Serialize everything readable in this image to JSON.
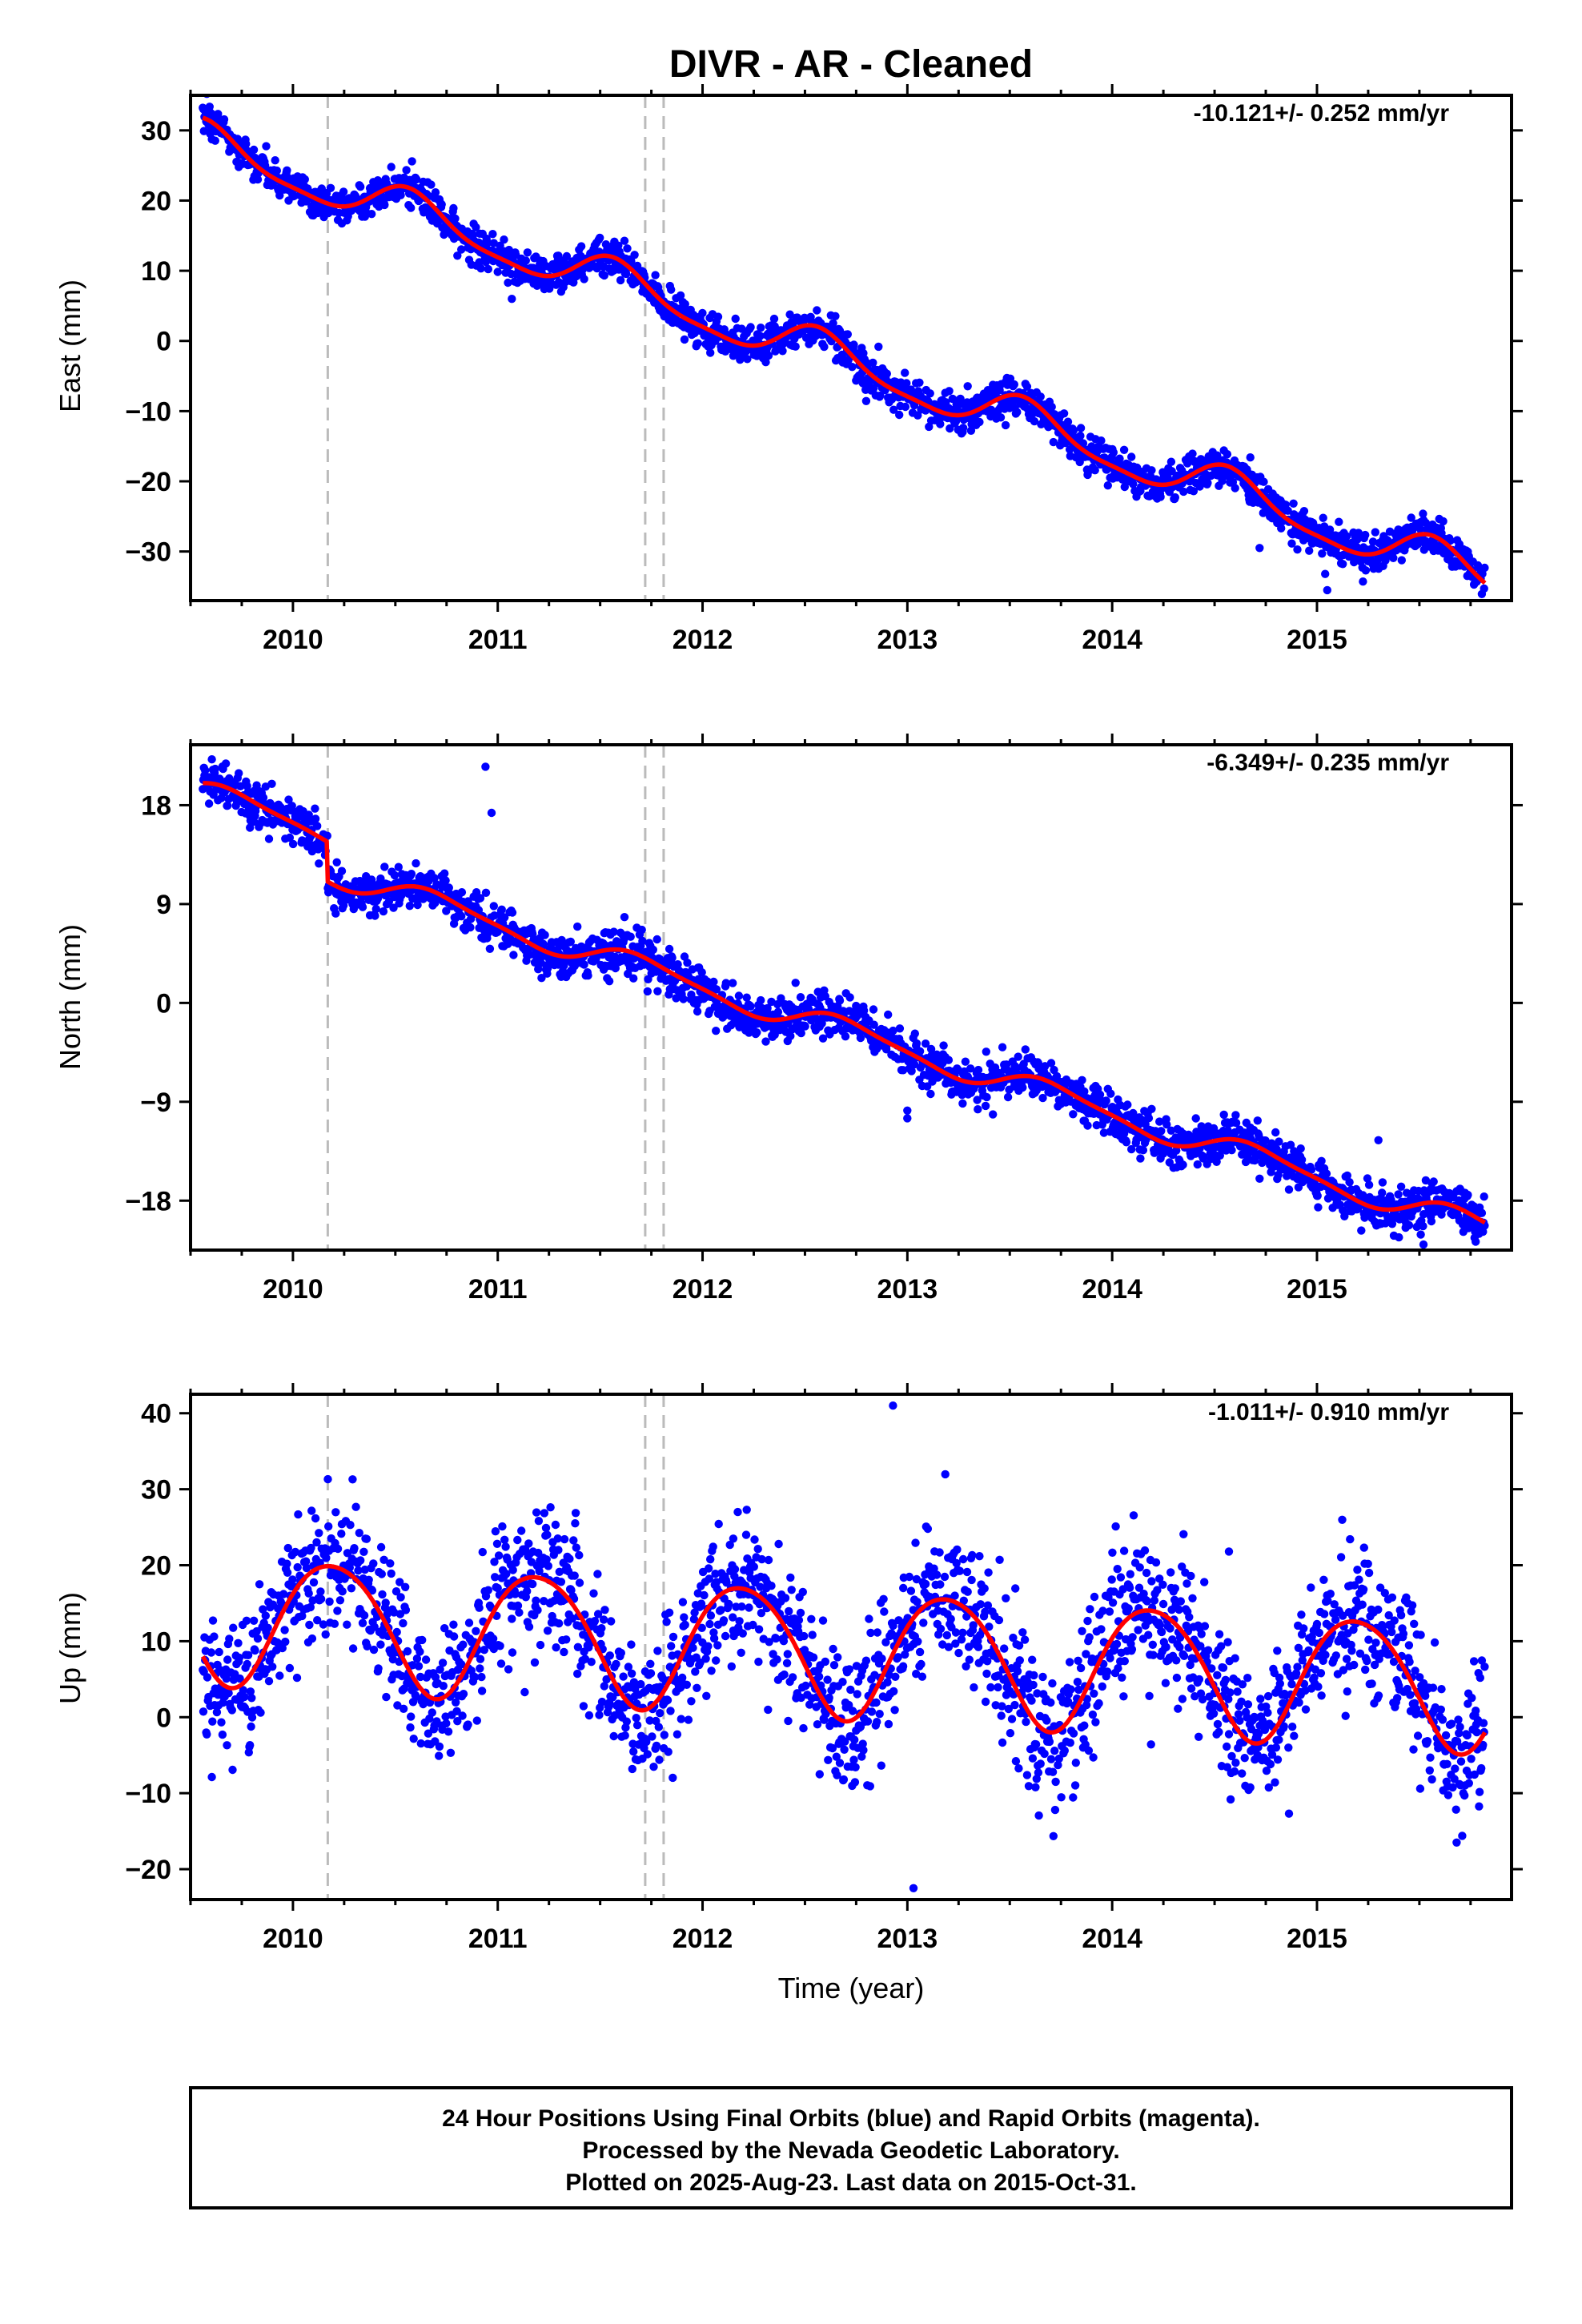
{
  "title": "DIVR  - AR - Cleaned",
  "xlabel": "Time (year)",
  "colors": {
    "points": "#0000ff",
    "model": "#ff0000",
    "events": "#bbbbbb",
    "frame": "#000000"
  },
  "footer": {
    "lines": [
      "24 Hour Positions Using Final Orbits (blue) and Rapid Orbits (magenta).",
      "Processed by the Nevada Geodetic Laboratory.",
      "Plotted on 2025-Aug-23. Last data on 2015-Oct-31."
    ]
  },
  "chart_data": [
    {
      "type": "scatter",
      "panel": "east",
      "ylabel": "East (mm)",
      "rate_label": "-10.121+/- 0.252 mm/yr",
      "xlim": [
        2009.5,
        2015.95
      ],
      "ylim": [
        -37,
        35
      ],
      "xticks": [
        2010,
        2011,
        2012,
        2013,
        2014,
        2015
      ],
      "yticks": [
        30,
        20,
        10,
        0,
        -10,
        -20,
        -30
      ],
      "ytick_labels": [
        "30",
        "20",
        "10",
        "0",
        "−10",
        "−20",
        "−30"
      ],
      "event_lines": [
        2010.17,
        2011.72,
        2011.81
      ],
      "model": {
        "start": [
          2009.56,
          31.8
        ],
        "end": [
          2015.82,
          -34.5
        ],
        "trend_mm_per_yr": -10.121,
        "annual_amp": 3.0,
        "annual_phase": 4.2,
        "semiannual_amp": 0.8,
        "semiannual_phase": 1.0
      },
      "scatter_noise_mm": 1.3,
      "outliers": [
        [
          2015.05,
          -35.5
        ],
        [
          2015.04,
          -33.2
        ],
        [
          2014.72,
          -29.5
        ],
        [
          2011.05,
          8.3
        ],
        [
          2013.48,
          -12.0
        ]
      ]
    },
    {
      "type": "scatter",
      "panel": "north",
      "ylabel": "North (mm)",
      "rate_label": "-6.349+/- 0.235 mm/yr",
      "xlim": [
        2009.5,
        2015.95
      ],
      "ylim": [
        -22.5,
        23.5
      ],
      "xticks": [
        2010,
        2011,
        2012,
        2013,
        2014,
        2015
      ],
      "yticks": [
        18,
        9,
        0,
        -9,
        -18
      ],
      "ytick_labels": [
        "18",
        "9",
        "0",
        "−9",
        "−18"
      ],
      "event_lines": [
        2010.17,
        2011.72,
        2011.81
      ],
      "model": {
        "start": [
          2009.56,
          20.0
        ],
        "end": [
          2015.82,
          -20.0
        ],
        "trend_mm_per_yr": -6.349,
        "annual_amp": 1.2,
        "annual_phase": 3.4,
        "semiannual_amp": 0.3,
        "semiannual_phase": 0.5
      },
      "offsets": [
        [
          2010.17,
          -4.0
        ]
      ],
      "scatter_noise_mm": 1.0,
      "outliers": [
        [
          2010.94,
          21.5
        ],
        [
          2010.97,
          17.3
        ],
        [
          2013.0,
          -10.5
        ],
        [
          2013.0,
          -9.8
        ],
        [
          2014.72,
          -16.0
        ],
        [
          2015.3,
          -12.5
        ],
        [
          2015.52,
          -22.0
        ]
      ]
    },
    {
      "type": "scatter",
      "panel": "up",
      "ylabel": "Up (mm)",
      "rate_label": "-1.011+/- 0.910 mm/yr",
      "xlim": [
        2009.5,
        2015.95
      ],
      "ylim": [
        -24,
        42.5
      ],
      "xticks": [
        2010,
        2011,
        2012,
        2013,
        2014,
        2015
      ],
      "yticks": [
        40,
        30,
        20,
        10,
        0,
        -10,
        -20
      ],
      "ytick_labels": [
        "40",
        "30",
        "20",
        "10",
        "0",
        "−10",
        "−20"
      ],
      "event_lines": [
        2010.17,
        2011.72,
        2011.81
      ],
      "model": {
        "start": [
          2009.56,
          8.0
        ],
        "end": [
          2015.82,
          -2.0
        ],
        "trend_mm_per_yr": -1.011,
        "annual_amp": 5.8,
        "annual_phase": 0.35,
        "semiannual_amp": 0.6,
        "semiannual_phase": 2.0
      },
      "scatter_noise_mm": 4.5,
      "outliers": [
        [
          2012.93,
          41.0
        ],
        [
          2012.15,
          23.5
        ],
        [
          2014.57,
          21.8
        ],
        [
          2013.03,
          -22.5
        ],
        [
          2012.98,
          17.0
        ]
      ]
    }
  ]
}
